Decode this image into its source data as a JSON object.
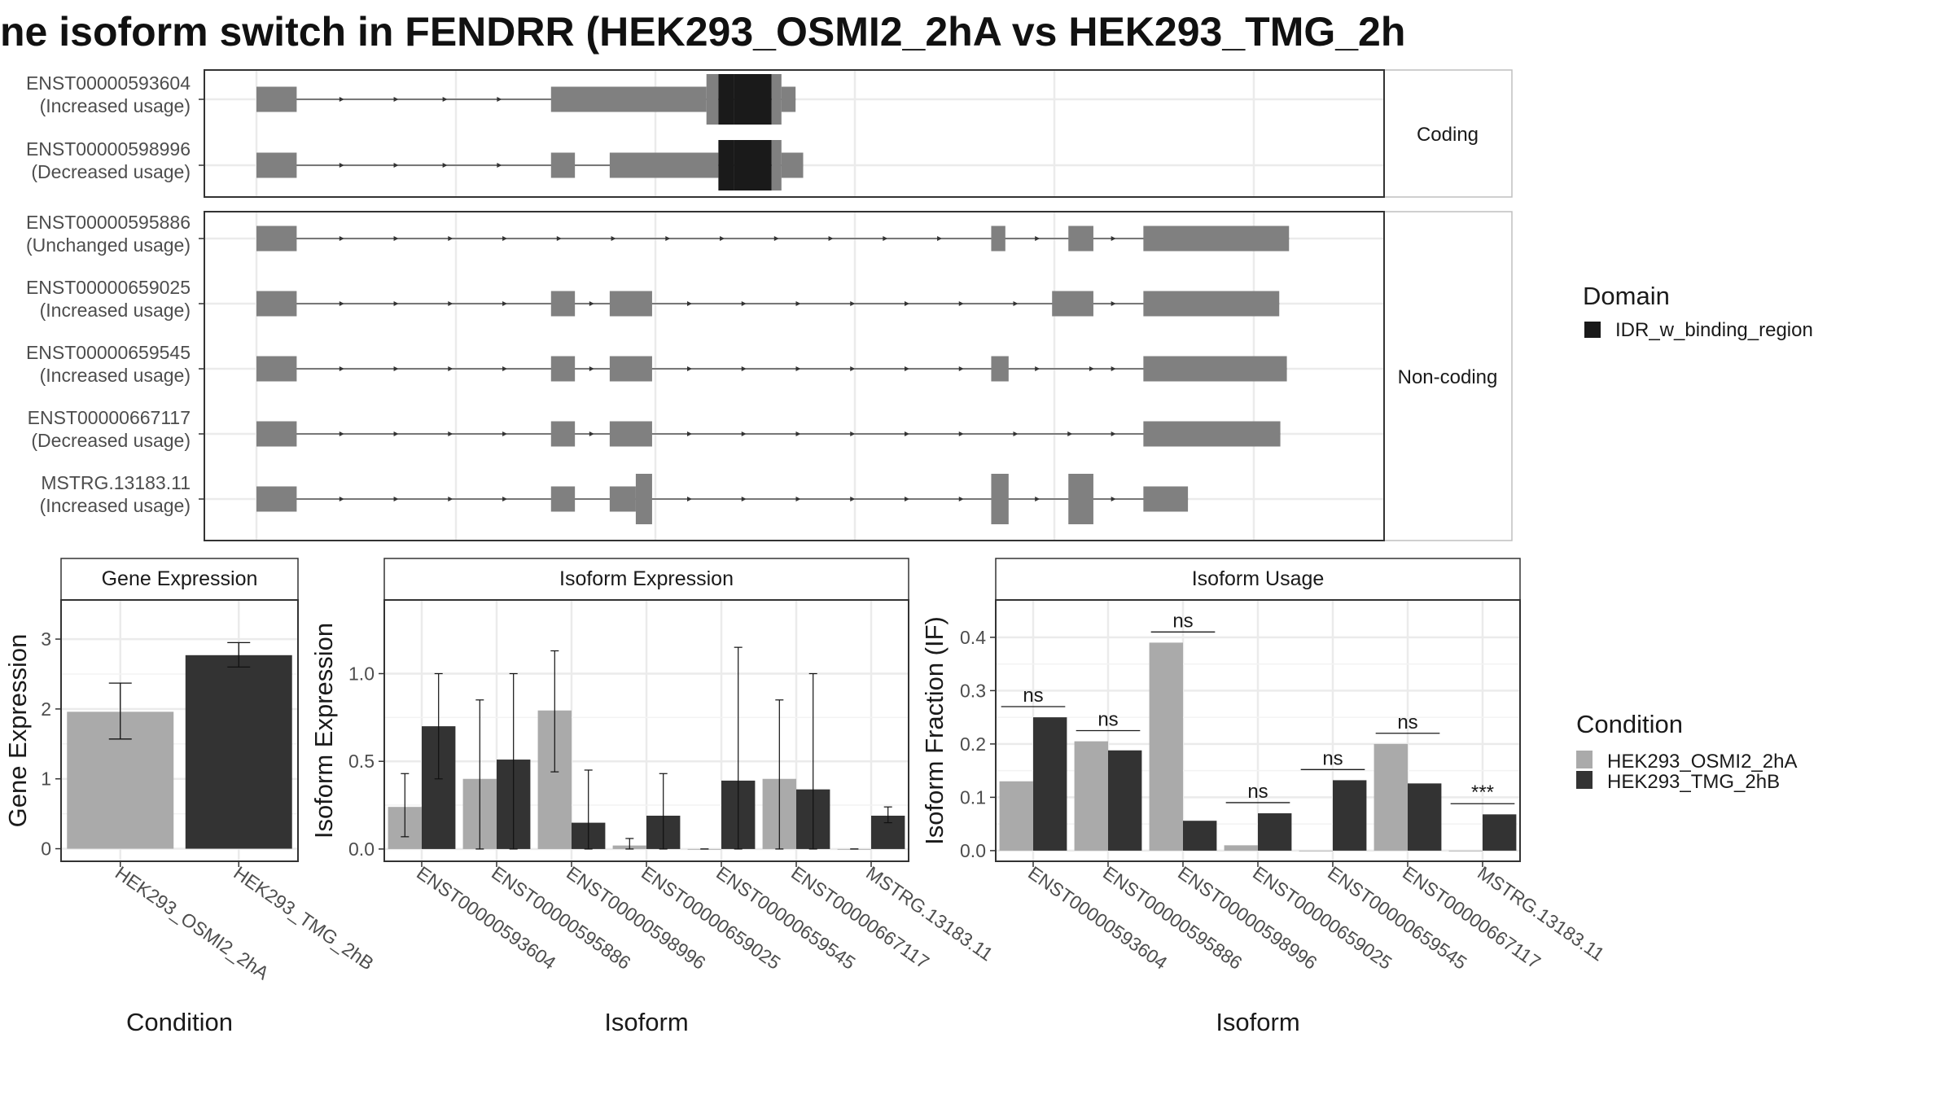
{
  "title": "ne isoform switch in FENDRR (HEK293_OSMI2_2hA vs HEK293_TMG_2h",
  "colors": {
    "exon": "#808080",
    "intron": "#333333",
    "domain": "#1a1a1a",
    "condA": "#aaaaaa",
    "condB": "#333333",
    "grid": "#ebebeb",
    "panel_border": "#333333",
    "strip_bg": "#ffffff"
  },
  "facets": {
    "coding": "Coding",
    "noncoding": "Non-coding"
  },
  "domain_legend": {
    "title": "Domain",
    "items": [
      "IDR_w_binding_region"
    ]
  },
  "condition_legend": {
    "title": "Condition",
    "items": [
      "HEK293_OSMI2_2hA",
      "HEK293_TMG_2hB"
    ]
  },
  "isoforms": [
    {
      "id": "ENST00000593604",
      "usage": "(Increased usage)",
      "group": "coding",
      "exons": [
        [
          0,
          0.037
        ],
        [
          0.271,
          0.414
        ],
        [
          0.414,
          0.425
        ],
        [
          0.425,
          0.439
        ],
        [
          0.439,
          0.474
        ],
        [
          0.474,
          0.483
        ],
        [
          0.483,
          0.496
        ]
      ],
      "thick": [
        [
          0.414,
          0.483
        ]
      ],
      "domains": [
        [
          0.425,
          0.474
        ]
      ],
      "arrows": [
        0.08,
        0.13,
        0.175,
        0.225
      ]
    },
    {
      "id": "ENST00000598996",
      "usage": "(Decreased usage)",
      "group": "coding",
      "exons": [
        [
          0,
          0.037
        ],
        [
          0.271,
          0.293
        ],
        [
          0.325,
          0.425
        ],
        [
          0.425,
          0.439
        ],
        [
          0.439,
          0.474
        ],
        [
          0.474,
          0.483
        ],
        [
          0.483,
          0.503
        ]
      ],
      "thick": [
        [
          0.425,
          0.483
        ]
      ],
      "domains": [
        [
          0.425,
          0.474
        ]
      ],
      "arrows": [
        0.08,
        0.13,
        0.175,
        0.225
      ]
    },
    {
      "id": "ENST00000595886",
      "usage": "(Unchanged usage)",
      "group": "noncoding",
      "exons": [
        [
          0,
          0.037
        ],
        [
          0.676,
          0.689
        ],
        [
          0.747,
          0.77
        ],
        [
          0.816,
          0.95
        ]
      ],
      "thick": [],
      "domains": [],
      "arrows": [
        0.08,
        0.13,
        0.18,
        0.23,
        0.28,
        0.33,
        0.38,
        0.43,
        0.48,
        0.53,
        0.58,
        0.63,
        0.72,
        0.79
      ]
    },
    {
      "id": "ENST00000659025",
      "usage": "(Increased usage)",
      "group": "noncoding",
      "exons": [
        [
          0,
          0.037
        ],
        [
          0.271,
          0.293
        ],
        [
          0.325,
          0.364
        ],
        [
          0.732,
          0.77
        ],
        [
          0.816,
          0.941
        ]
      ],
      "thick": [],
      "domains": [],
      "arrows": [
        0.08,
        0.13,
        0.18,
        0.23,
        0.31,
        0.4,
        0.45,
        0.5,
        0.55,
        0.6,
        0.65,
        0.7,
        0.79
      ]
    },
    {
      "id": "ENST00000659545",
      "usage": "(Increased usage)",
      "group": "noncoding",
      "exons": [
        [
          0,
          0.037
        ],
        [
          0.271,
          0.293
        ],
        [
          0.325,
          0.364
        ],
        [
          0.676,
          0.692
        ],
        [
          0.816,
          0.948
        ]
      ],
      "thick": [],
      "domains": [],
      "arrows": [
        0.08,
        0.13,
        0.18,
        0.23,
        0.31,
        0.4,
        0.45,
        0.5,
        0.55,
        0.6,
        0.65,
        0.72,
        0.77,
        0.79
      ]
    },
    {
      "id": "ENST00000667117",
      "usage": "(Decreased usage)",
      "group": "noncoding",
      "exons": [
        [
          0,
          0.037
        ],
        [
          0.271,
          0.293
        ],
        [
          0.325,
          0.364
        ],
        [
          0.816,
          0.942
        ]
      ],
      "thick": [],
      "domains": [],
      "arrows": [
        0.08,
        0.13,
        0.18,
        0.23,
        0.31,
        0.4,
        0.45,
        0.5,
        0.55,
        0.6,
        0.65,
        0.7,
        0.75,
        0.79
      ]
    },
    {
      "id": "MSTRG.13183.11",
      "usage": "(Increased usage)",
      "group": "noncoding",
      "exons": [
        [
          0,
          0.037
        ],
        [
          0.271,
          0.293
        ],
        [
          0.325,
          0.349
        ],
        [
          0.349,
          0.364
        ],
        [
          0.676,
          0.692
        ],
        [
          0.747,
          0.77
        ],
        [
          0.816,
          0.857
        ]
      ],
      "thick": [
        [
          0.349,
          0.364
        ],
        [
          0.676,
          0.692
        ],
        [
          0.747,
          0.77
        ]
      ],
      "domains": [],
      "arrows": [
        0.08,
        0.13,
        0.18,
        0.23,
        0.4,
        0.45,
        0.5,
        0.55,
        0.6,
        0.65,
        0.72,
        0.79
      ]
    }
  ],
  "chart_data": [
    {
      "type": "bar",
      "title": "Gene Expression",
      "xlabel": "Condition",
      "ylabel": "Gene Expression",
      "categories": [
        "HEK293_OSMI2_2hA",
        "HEK293_TMG_2hB"
      ],
      "values": [
        1.96,
        2.77
      ],
      "errors": [
        [
          1.57,
          2.37
        ],
        [
          2.6,
          2.95
        ]
      ],
      "ylim": [
        -0.18,
        3.56
      ],
      "yticks": [
        0,
        1,
        2,
        3
      ],
      "ytick_labels": [
        "0",
        "1",
        "2",
        "3"
      ],
      "grid": true
    },
    {
      "type": "bar",
      "title": "Isoform Expression",
      "xlabel": "Isoform",
      "ylabel": "Isoform Expression",
      "categories": [
        "ENST00000593604",
        "ENST00000595886",
        "ENST00000598996",
        "ENST00000659025",
        "ENST00000659545",
        "ENST00000667117",
        "MSTRG.13183.11"
      ],
      "series": [
        {
          "name": "HEK293_OSMI2_2hA",
          "values": [
            0.24,
            0.4,
            0.79,
            0.02,
            0.0,
            0.4,
            0.0
          ],
          "errors": [
            [
              0.07,
              0.43
            ],
            [
              0,
              0.85
            ],
            [
              0.44,
              1.13
            ],
            [
              0,
              0.06
            ],
            [
              0,
              0
            ],
            [
              0,
              0.85
            ],
            [
              0,
              0
            ]
          ]
        },
        {
          "name": "HEK293_TMG_2hB",
          "values": [
            0.7,
            0.51,
            0.15,
            0.19,
            0.39,
            0.34,
            0.19
          ],
          "errors": [
            [
              0.4,
              1.0
            ],
            [
              0,
              1.0
            ],
            [
              0,
              0.45
            ],
            [
              0,
              0.43
            ],
            [
              0,
              1.15
            ],
            [
              0,
              1.0
            ],
            [
              0.15,
              0.24
            ]
          ]
        }
      ],
      "ylim": [
        -0.07,
        1.42
      ],
      "yticks": [
        0,
        0.5,
        1.0
      ],
      "ytick_labels": [
        "0.0",
        "0.5",
        "1.0"
      ],
      "grid": true
    },
    {
      "type": "bar",
      "title": "Isoform Usage",
      "xlabel": "Isoform",
      "ylabel": "Isoform Fraction (IF)",
      "categories": [
        "ENST00000593604",
        "ENST00000595886",
        "ENST00000598996",
        "ENST00000659025",
        "ENST00000659545",
        "ENST00000667117",
        "MSTRG.13183.11"
      ],
      "series": [
        {
          "name": "HEK293_OSMI2_2hA",
          "values": [
            0.13,
            0.205,
            0.39,
            0.01,
            0.0,
            0.2,
            0.0
          ]
        },
        {
          "name": "HEK293_TMG_2hB",
          "values": [
            0.25,
            0.188,
            0.056,
            0.07,
            0.132,
            0.126,
            0.068
          ]
        }
      ],
      "significance": [
        "ns",
        "ns",
        "ns",
        "ns",
        "ns",
        "ns",
        "***"
      ],
      "sig_y": [
        0.27,
        0.225,
        0.41,
        0.09,
        0.152,
        0.22,
        0.088
      ],
      "ylim": [
        -0.02,
        0.47
      ],
      "yticks": [
        0,
        0.1,
        0.2,
        0.3,
        0.4
      ],
      "ytick_labels": [
        "0.0",
        "0.1",
        "0.2",
        "0.3",
        "0.4"
      ],
      "grid": true
    }
  ]
}
